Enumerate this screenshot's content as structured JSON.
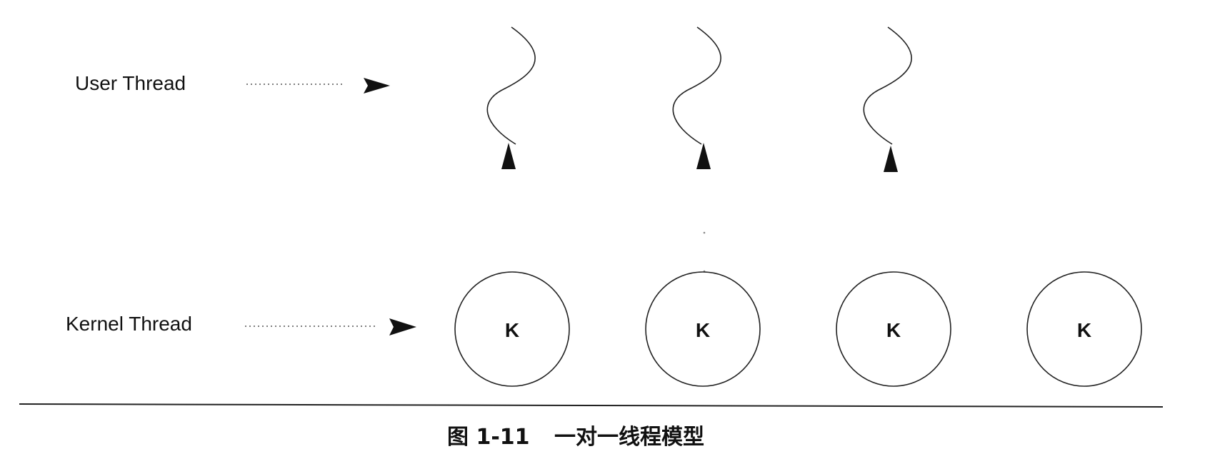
{
  "labels": {
    "user_thread": "User Thread",
    "kernel_thread": "Kernel Thread"
  },
  "kernel_threads": [
    {
      "symbol": "K",
      "mapped_user_thread": true
    },
    {
      "symbol": "K",
      "mapped_user_thread": true
    },
    {
      "symbol": "K",
      "mapped_user_thread": true
    },
    {
      "symbol": "K",
      "mapped_user_thread": false
    }
  ],
  "caption": {
    "figure_number": "图 1-11",
    "title": "一对一线程模型"
  }
}
